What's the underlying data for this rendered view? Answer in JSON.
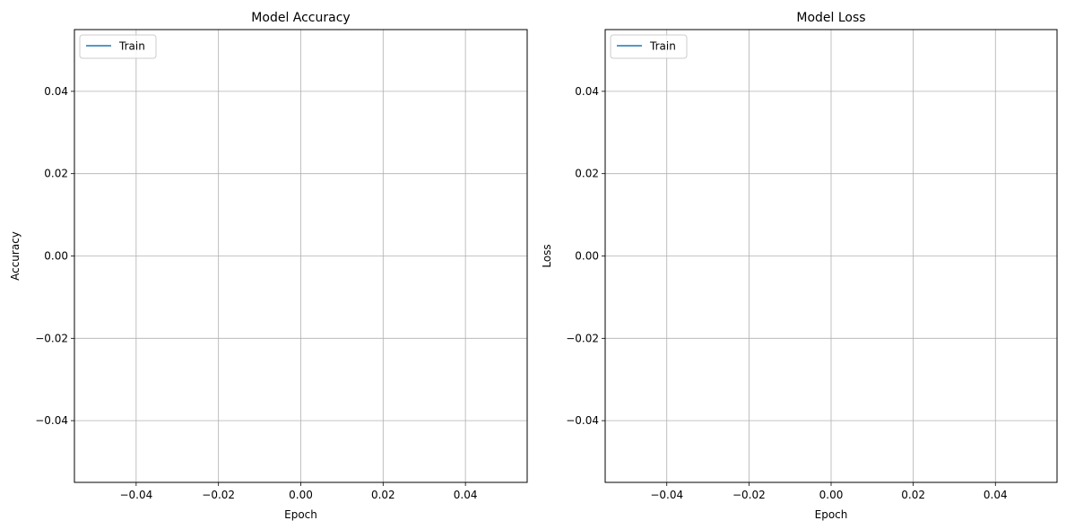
{
  "chart_data": [
    {
      "type": "line",
      "title": "Model Accuracy",
      "xlabel": "Epoch",
      "ylabel": "Accuracy",
      "xlim": [
        -0.055,
        0.055
      ],
      "ylim": [
        -0.055,
        0.055
      ],
      "xticks": [
        -0.04,
        -0.02,
        0.0,
        0.02,
        0.04
      ],
      "yticks": [
        -0.04,
        -0.02,
        0.0,
        0.02,
        0.04
      ],
      "xtick_labels": [
        "−0.04",
        "−0.02",
        "0.00",
        "0.02",
        "0.04"
      ],
      "ytick_labels": [
        "−0.04",
        "−0.02",
        "0.00",
        "0.02",
        "0.04"
      ],
      "grid": true,
      "legend_position": "upper-left",
      "series": [
        {
          "name": "Train",
          "x": [],
          "y": [],
          "color": "#1f77b4"
        }
      ]
    },
    {
      "type": "line",
      "title": "Model Loss",
      "xlabel": "Epoch",
      "ylabel": "Loss",
      "xlim": [
        -0.055,
        0.055
      ],
      "ylim": [
        -0.055,
        0.055
      ],
      "xticks": [
        -0.04,
        -0.02,
        0.0,
        0.02,
        0.04
      ],
      "yticks": [
        -0.04,
        -0.02,
        0.0,
        0.02,
        0.04
      ],
      "xtick_labels": [
        "−0.04",
        "−0.02",
        "0.00",
        "0.02",
        "0.04"
      ],
      "ytick_labels": [
        "−0.04",
        "−0.02",
        "0.00",
        "0.02",
        "0.04"
      ],
      "grid": true,
      "legend_position": "upper-left",
      "series": [
        {
          "name": "Train",
          "x": [],
          "y": [],
          "color": "#1f77b4"
        }
      ]
    }
  ]
}
